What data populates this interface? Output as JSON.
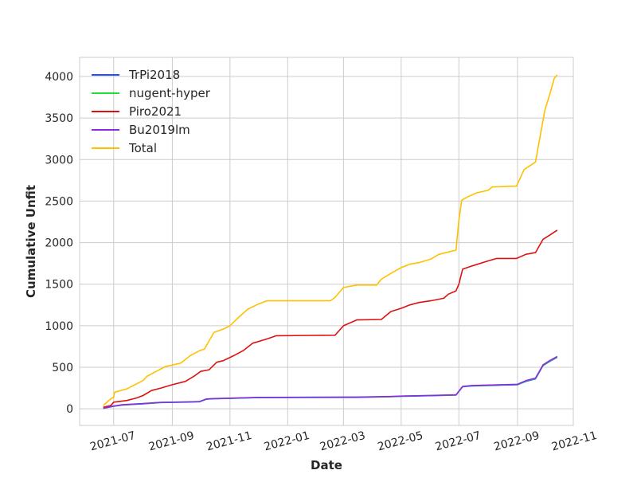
{
  "chart_data": {
    "type": "line",
    "xlabel": "Date",
    "ylabel": "Cumulative Unfit",
    "x_type": "date",
    "xlim": [
      "2021-05-26",
      "2022-10-30"
    ],
    "ylim": [
      -200,
      4230
    ],
    "grid": true,
    "legend_position": "top-left",
    "x_ticks": [
      {
        "value": "2021-07-01",
        "label": "2021-07"
      },
      {
        "value": "2021-09-01",
        "label": "2021-09"
      },
      {
        "value": "2021-11-01",
        "label": "2021-11"
      },
      {
        "value": "2022-01-01",
        "label": "2022-01"
      },
      {
        "value": "2022-03-01",
        "label": "2022-03"
      },
      {
        "value": "2022-05-01",
        "label": "2022-05"
      },
      {
        "value": "2022-07-01",
        "label": "2022-07"
      },
      {
        "value": "2022-09-01",
        "label": "2022-09"
      },
      {
        "value": "2022-11-01",
        "label": "2022-11"
      }
    ],
    "y_ticks": [
      {
        "value": 0,
        "label": "0"
      },
      {
        "value": 500,
        "label": "500"
      },
      {
        "value": 1000,
        "label": "1000"
      },
      {
        "value": 1500,
        "label": "1500"
      },
      {
        "value": 2000,
        "label": "2000"
      },
      {
        "value": 2500,
        "label": "2500"
      },
      {
        "value": 3000,
        "label": "3000"
      },
      {
        "value": 3500,
        "label": "3500"
      },
      {
        "value": 4000,
        "label": "4000"
      }
    ],
    "series": [
      {
        "name": "TrPi2018",
        "color": "#1f4fff",
        "points": [
          [
            "2021-06-20",
            5
          ],
          [
            "2021-07-01",
            30
          ],
          [
            "2021-07-10",
            45
          ],
          [
            "2021-08-01",
            60
          ],
          [
            "2021-08-20",
            75
          ],
          [
            "2021-09-15",
            80
          ],
          [
            "2021-09-30",
            85
          ],
          [
            "2021-10-07",
            115
          ],
          [
            "2021-10-15",
            120
          ],
          [
            "2021-11-01",
            125
          ],
          [
            "2021-12-01",
            135
          ],
          [
            "2022-03-15",
            138
          ],
          [
            "2022-04-20",
            145
          ],
          [
            "2022-05-01",
            150
          ],
          [
            "2022-06-01",
            158
          ],
          [
            "2022-06-28",
            165
          ],
          [
            "2022-07-05",
            265
          ],
          [
            "2022-07-15",
            275
          ],
          [
            "2022-08-15",
            285
          ],
          [
            "2022-09-01",
            290
          ],
          [
            "2022-09-10",
            330
          ],
          [
            "2022-09-20",
            360
          ],
          [
            "2022-09-28",
            520
          ],
          [
            "2022-10-05",
            570
          ],
          [
            "2022-10-13",
            620
          ]
        ]
      },
      {
        "name": "nugent-hyper",
        "color": "#22dd33",
        "points": [
          [
            "2021-06-20",
            5
          ],
          [
            "2021-07-01",
            32
          ],
          [
            "2021-07-10",
            47
          ],
          [
            "2021-08-01",
            62
          ],
          [
            "2021-08-20",
            77
          ],
          [
            "2021-09-15",
            82
          ],
          [
            "2021-09-30",
            87
          ],
          [
            "2021-10-07",
            117
          ],
          [
            "2021-10-15",
            122
          ],
          [
            "2021-11-01",
            127
          ],
          [
            "2021-12-01",
            137
          ],
          [
            "2022-03-15",
            140
          ],
          [
            "2022-04-20",
            147
          ],
          [
            "2022-05-01",
            152
          ],
          [
            "2022-06-01",
            160
          ],
          [
            "2022-06-28",
            167
          ],
          [
            "2022-07-05",
            268
          ],
          [
            "2022-07-15",
            278
          ],
          [
            "2022-08-15",
            288
          ],
          [
            "2022-09-01",
            293
          ],
          [
            "2022-09-10",
            335
          ],
          [
            "2022-09-20",
            365
          ],
          [
            "2022-09-28",
            525
          ],
          [
            "2022-10-05",
            575
          ],
          [
            "2022-10-13",
            625
          ]
        ]
      },
      {
        "name": "Piro2021",
        "color": "#dd1111",
        "points": [
          [
            "2021-06-20",
            20
          ],
          [
            "2021-06-28",
            40
          ],
          [
            "2021-07-01",
            80
          ],
          [
            "2021-07-15",
            100
          ],
          [
            "2021-07-25",
            130
          ],
          [
            "2021-08-01",
            160
          ],
          [
            "2021-08-10",
            220
          ],
          [
            "2021-08-20",
            250
          ],
          [
            "2021-09-01",
            290
          ],
          [
            "2021-09-15",
            330
          ],
          [
            "2021-09-25",
            400
          ],
          [
            "2021-10-01",
            450
          ],
          [
            "2021-10-10",
            470
          ],
          [
            "2021-10-18",
            560
          ],
          [
            "2021-10-25",
            580
          ],
          [
            "2021-11-05",
            640
          ],
          [
            "2021-11-15",
            700
          ],
          [
            "2021-11-25",
            790
          ],
          [
            "2021-12-10",
            840
          ],
          [
            "2021-12-20",
            880
          ],
          [
            "2022-02-20",
            885
          ],
          [
            "2022-03-01",
            1000
          ],
          [
            "2022-03-15",
            1070
          ],
          [
            "2022-04-10",
            1075
          ],
          [
            "2022-04-20",
            1170
          ],
          [
            "2022-05-01",
            1210
          ],
          [
            "2022-05-10",
            1250
          ],
          [
            "2022-05-20",
            1280
          ],
          [
            "2022-06-01",
            1300
          ],
          [
            "2022-06-15",
            1330
          ],
          [
            "2022-06-20",
            1380
          ],
          [
            "2022-06-28",
            1420
          ],
          [
            "2022-07-01",
            1500
          ],
          [
            "2022-07-05",
            1680
          ],
          [
            "2022-07-15",
            1720
          ],
          [
            "2022-08-01",
            1780
          ],
          [
            "2022-08-10",
            1810
          ],
          [
            "2022-08-31",
            1810
          ],
          [
            "2022-09-10",
            1860
          ],
          [
            "2022-09-20",
            1880
          ],
          [
            "2022-09-28",
            2040
          ],
          [
            "2022-10-05",
            2090
          ],
          [
            "2022-10-13",
            2150
          ]
        ]
      },
      {
        "name": "Bu2019lm",
        "color": "#8a2be2",
        "points": [
          [
            "2021-06-20",
            8
          ],
          [
            "2021-07-01",
            33
          ],
          [
            "2021-07-10",
            48
          ],
          [
            "2021-08-01",
            63
          ],
          [
            "2021-08-20",
            78
          ],
          [
            "2021-09-15",
            83
          ],
          [
            "2021-09-30",
            88
          ],
          [
            "2021-10-07",
            118
          ],
          [
            "2021-10-15",
            123
          ],
          [
            "2021-11-01",
            128
          ],
          [
            "2021-12-01",
            138
          ],
          [
            "2022-03-15",
            141
          ],
          [
            "2022-04-20",
            148
          ],
          [
            "2022-05-01",
            153
          ],
          [
            "2022-06-01",
            161
          ],
          [
            "2022-06-28",
            168
          ],
          [
            "2022-07-05",
            270
          ],
          [
            "2022-07-15",
            280
          ],
          [
            "2022-08-15",
            290
          ],
          [
            "2022-09-01",
            295
          ],
          [
            "2022-09-10",
            340
          ],
          [
            "2022-09-20",
            370
          ],
          [
            "2022-09-28",
            530
          ],
          [
            "2022-10-05",
            580
          ],
          [
            "2022-10-13",
            630
          ]
        ]
      },
      {
        "name": "Total",
        "color": "#ffc000",
        "points": [
          [
            "2021-06-20",
            40
          ],
          [
            "2021-06-28",
            120
          ],
          [
            "2021-07-01",
            140
          ],
          [
            "2021-07-02",
            200
          ],
          [
            "2021-07-15",
            240
          ],
          [
            "2021-07-25",
            300
          ],
          [
            "2021-08-01",
            340
          ],
          [
            "2021-08-05",
            390
          ],
          [
            "2021-08-15",
            450
          ],
          [
            "2021-08-25",
            510
          ],
          [
            "2021-09-10",
            550
          ],
          [
            "2021-09-20",
            640
          ],
          [
            "2021-09-30",
            700
          ],
          [
            "2021-10-05",
            720
          ],
          [
            "2021-10-10",
            820
          ],
          [
            "2021-10-15",
            920
          ],
          [
            "2021-10-25",
            960
          ],
          [
            "2021-11-01",
            1000
          ],
          [
            "2021-11-10",
            1100
          ],
          [
            "2021-11-20",
            1200
          ],
          [
            "2021-12-01",
            1260
          ],
          [
            "2021-12-10",
            1300
          ],
          [
            "2022-02-15",
            1300
          ],
          [
            "2022-02-20",
            1340
          ],
          [
            "2022-03-01",
            1460
          ],
          [
            "2022-03-15",
            1490
          ],
          [
            "2022-04-05",
            1490
          ],
          [
            "2022-04-10",
            1560
          ],
          [
            "2022-04-20",
            1630
          ],
          [
            "2022-05-01",
            1700
          ],
          [
            "2022-05-10",
            1740
          ],
          [
            "2022-05-20",
            1760
          ],
          [
            "2022-06-01",
            1800
          ],
          [
            "2022-06-10",
            1860
          ],
          [
            "2022-06-28",
            1910
          ],
          [
            "2022-07-01",
            2270
          ],
          [
            "2022-07-04",
            2510
          ],
          [
            "2022-07-10",
            2550
          ],
          [
            "2022-07-20",
            2600
          ],
          [
            "2022-08-01",
            2630
          ],
          [
            "2022-08-05",
            2670
          ],
          [
            "2022-08-31",
            2680
          ],
          [
            "2022-09-08",
            2880
          ],
          [
            "2022-09-20",
            2970
          ],
          [
            "2022-09-30",
            3600
          ],
          [
            "2022-10-05",
            3780
          ],
          [
            "2022-10-10",
            3980
          ],
          [
            "2022-10-13",
            4020
          ]
        ]
      }
    ]
  }
}
